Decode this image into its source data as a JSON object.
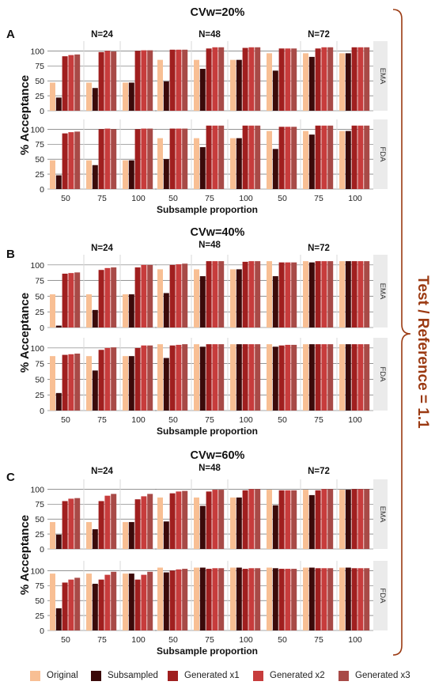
{
  "right_label": "Test / Reference = 1.1",
  "colors": {
    "original": "#f8bf94",
    "subsampled": "#3b0a0a",
    "gen1": "#a01f1f",
    "gen2": "#c73c3c",
    "gen3": "#a84a47",
    "accent": "#9b3a12",
    "divider": "#d8d8d8",
    "strip": "#ebebeb"
  },
  "legend": [
    {
      "label": "Original",
      "color": "#f8bf94"
    },
    {
      "label": "Subsampled",
      "color": "#3b0a0a"
    },
    {
      "label": "Generated x1",
      "color": "#a01f1f"
    },
    {
      "label": "Generated x2",
      "color": "#c73c3c"
    },
    {
      "label": "Generated x3",
      "color": "#a84a47"
    }
  ],
  "chart_data": [
    {
      "type": "bar",
      "panel": "A",
      "title": "CVw=20%",
      "ylabel": "% Acceptance",
      "xlabel": "Subsample proportion",
      "ylim": [
        0,
        100
      ],
      "yticks": [
        0,
        25,
        50,
        75,
        100
      ],
      "categories": [
        "50",
        "75",
        "100"
      ],
      "facets": [
        "N=24",
        "N=48",
        "N=72"
      ],
      "rows": [
        "EMA",
        "FDA"
      ],
      "series_names": [
        "Original",
        "Subsampled",
        "Generated x1",
        "Generated x2",
        "Generated x3"
      ],
      "values": {
        "EMA": {
          "N=24": [
            [
              47,
              22,
              91,
              93,
              94
            ],
            [
              47,
              38,
              98,
              100,
              99
            ],
            [
              47,
              47,
              100,
              101,
              101
            ]
          ],
          "N=48": [
            [
              85,
              49,
              102,
              102,
              102
            ],
            [
              85,
              70,
              104,
              106,
              106
            ],
            [
              85,
              85,
              105,
              106,
              106
            ]
          ],
          "N=72": [
            [
              96,
              67,
              104,
              104,
              104
            ],
            [
              96,
              90,
              104,
              106,
              106
            ],
            [
              96,
              96,
              106,
              106,
              106
            ]
          ]
        },
        "FDA": {
          "N=24": [
            [
              48,
              23,
              93,
              95,
              96
            ],
            [
              48,
              40,
              100,
              101,
              100
            ],
            [
              48,
              48,
              100,
              101,
              101
            ]
          ],
          "N=48": [
            [
              85,
              50,
              101,
              101,
              101
            ],
            [
              85,
              70,
              106,
              106,
              106
            ],
            [
              85,
              85,
              106,
              106,
              106
            ]
          ],
          "N=72": [
            [
              97,
              67,
              104,
              104,
              104
            ],
            [
              97,
              91,
              106,
              106,
              106
            ],
            [
              97,
              97,
              106,
              106,
              106
            ]
          ]
        }
      }
    },
    {
      "type": "bar",
      "panel": "B",
      "title": "CVw=40%",
      "ylabel": "% Acceptance",
      "xlabel": "Subsample proportion",
      "ylim": [
        0,
        100
      ],
      "yticks": [
        0,
        25,
        50,
        75,
        100
      ],
      "categories": [
        "50",
        "75",
        "100"
      ],
      "facets": [
        "N=24",
        "N=48",
        "N=72"
      ],
      "rows": [
        "EMA",
        "FDA"
      ],
      "series_names": [
        "Original",
        "Subsampled",
        "Generated x1",
        "Generated x2",
        "Generated x3"
      ],
      "values": {
        "EMA": {
          "N=24": [
            [
              53,
              3,
              86,
              87,
              88
            ],
            [
              53,
              28,
              92,
              95,
              96
            ],
            [
              53,
              53,
              96,
              100,
              100
            ]
          ],
          "N=48": [
            [
              93,
              55,
              100,
              101,
              102
            ],
            [
              93,
              82,
              106,
              106,
              106
            ],
            [
              93,
              93,
              105,
              106,
              106
            ]
          ],
          "N=72": [
            [
              106,
              82,
              104,
              104,
              104
            ],
            [
              106,
              104,
              106,
              106,
              106
            ],
            [
              106,
              106,
              106,
              106,
              106
            ]
          ]
        },
        "FDA": {
          "N=24": [
            [
              87,
              28,
              89,
              90,
              91
            ],
            [
              87,
              64,
              97,
              100,
              101
            ],
            [
              87,
              87,
              100,
              104,
              104
            ]
          ],
          "N=48": [
            [
              106,
              84,
              104,
              105,
              106
            ],
            [
              106,
              102,
              106,
              106,
              106
            ],
            [
              106,
              106,
              106,
              106,
              106
            ]
          ],
          "N=72": [
            [
              106,
              102,
              104,
              105,
              105
            ],
            [
              106,
              106,
              106,
              106,
              106
            ],
            [
              106,
              106,
              106,
              106,
              106
            ]
          ]
        }
      }
    },
    {
      "type": "bar",
      "panel": "C",
      "title": "CVw=60%",
      "ylabel": "% Acceptance",
      "xlabel": "Subsample proportion",
      "ylim": [
        0,
        100
      ],
      "yticks": [
        0,
        25,
        50,
        75,
        100
      ],
      "categories": [
        "50",
        "75",
        "100"
      ],
      "facets": [
        "N=24",
        "N=48",
        "N=72"
      ],
      "rows": [
        "EMA",
        "FDA"
      ],
      "series_names": [
        "Original",
        "Subsampled",
        "Generated x1",
        "Generated x2",
        "Generated x3"
      ],
      "values": {
        "EMA": {
          "N=24": [
            [
              45,
              24,
              80,
              84,
              85
            ],
            [
              45,
              33,
              80,
              89,
              92
            ],
            [
              45,
              45,
              83,
              88,
              92
            ]
          ],
          "N=48": [
            [
              86,
              46,
              93,
              96,
              97
            ],
            [
              86,
              72,
              96,
              99,
              99
            ],
            [
              86,
              86,
              98,
              100,
              100
            ]
          ],
          "N=72": [
            [
              99,
              73,
              98,
              98,
              98
            ],
            [
              99,
              90,
              98,
              100,
              100
            ],
            [
              99,
              99,
              100,
              100,
              100
            ]
          ]
        },
        "FDA": {
          "N=24": [
            [
              95,
              37,
              80,
              85,
              88
            ],
            [
              95,
              78,
              85,
              93,
              98
            ],
            [
              95,
              95,
              85,
              93,
              98
            ]
          ],
          "N=48": [
            [
              105,
              97,
              100,
              102,
              103
            ],
            [
              105,
              105,
              103,
              104,
              104
            ],
            [
              105,
              105,
              103,
              104,
              104
            ]
          ],
          "N=72": [
            [
              105,
              104,
              103,
              103,
              103
            ],
            [
              105,
              105,
              104,
              104,
              104
            ],
            [
              105,
              105,
              104,
              104,
              104
            ]
          ]
        }
      }
    }
  ]
}
